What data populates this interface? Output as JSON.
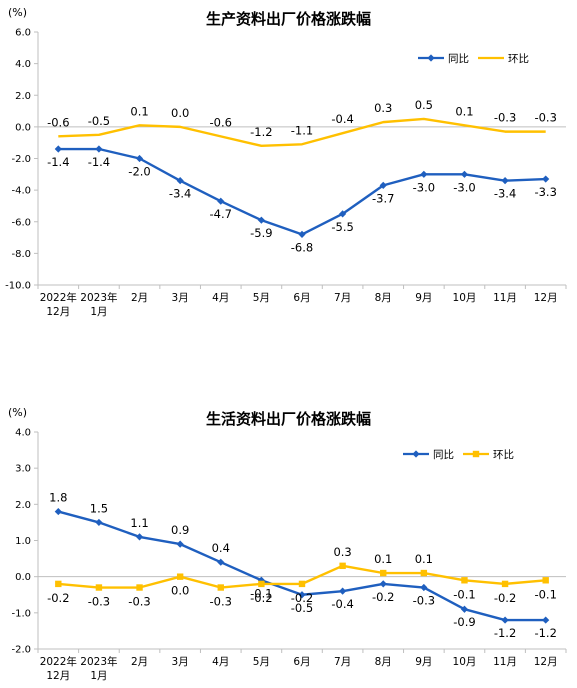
{
  "chart_data": [
    {
      "type": "line",
      "title": "生产资料出厂价格涨跌幅",
      "unit": "(%)",
      "categories": [
        [
          "2022年",
          "12月"
        ],
        [
          "2023年",
          "1月"
        ],
        [
          "2月"
        ],
        [
          "3月"
        ],
        [
          "4月"
        ],
        [
          "5月"
        ],
        [
          "6月"
        ],
        [
          "7月"
        ],
        [
          "8月"
        ],
        [
          "9月"
        ],
        [
          "10月"
        ],
        [
          "11月"
        ],
        [
          "12月"
        ]
      ],
      "ylim": [
        -10.0,
        6.0
      ],
      "yticks": [
        "6.0",
        "4.0",
        "2.0",
        "0.0",
        "-2.0",
        "-4.0",
        "-6.0",
        "-8.0",
        "-10.0"
      ],
      "legend_position": "top-right",
      "series": [
        {
          "name": "同比",
          "color": "#1f5fbf",
          "marker": "diamond",
          "values": [
            -1.4,
            -1.4,
            -2.0,
            -3.4,
            -4.7,
            -5.9,
            -6.8,
            -5.5,
            -3.7,
            -3.0,
            -3.0,
            -3.4,
            -3.3
          ],
          "labels": [
            "-1.4",
            "-1.4",
            "-2.0",
            "-3.4",
            "-4.7",
            "-5.9",
            "-6.8",
            "-5.5",
            "-3.7",
            "-3.0",
            "-3.0",
            "-3.4",
            "-3.3"
          ]
        },
        {
          "name": "环比",
          "color": "#ffc000",
          "marker": "none",
          "values": [
            -0.6,
            -0.5,
            0.1,
            0.0,
            -0.6,
            -1.2,
            -1.1,
            -0.4,
            0.3,
            0.5,
            0.1,
            -0.3,
            -0.3
          ],
          "labels": [
            "-0.6",
            "-0.5",
            "0.1",
            "0.0",
            "-0.6",
            "-1.2",
            "-1.1",
            "-0.4",
            "0.3",
            "0.5",
            "0.1",
            "-0.3",
            "-0.3"
          ]
        }
      ]
    },
    {
      "type": "line",
      "title": "生活资料出厂价格涨跌幅",
      "unit": "(%)",
      "categories": [
        [
          "2022年",
          "12月"
        ],
        [
          "2023年",
          "1月"
        ],
        [
          "2月"
        ],
        [
          "3月"
        ],
        [
          "4月"
        ],
        [
          "5月"
        ],
        [
          "6月"
        ],
        [
          "7月"
        ],
        [
          "8月"
        ],
        [
          "9月"
        ],
        [
          "10月"
        ],
        [
          "11月"
        ],
        [
          "12月"
        ]
      ],
      "ylim": [
        -2.0,
        4.0
      ],
      "yticks": [
        "4.0",
        "3.0",
        "2.0",
        "1.0",
        "0.0",
        "-1.0",
        "-2.0"
      ],
      "legend_position": "top-right",
      "series": [
        {
          "name": "同比",
          "color": "#1f5fbf",
          "marker": "diamond",
          "values": [
            1.8,
            1.5,
            1.1,
            0.9,
            0.4,
            -0.1,
            -0.5,
            -0.4,
            -0.2,
            -0.3,
            -0.9,
            -1.2,
            -1.2
          ],
          "labels": [
            "1.8",
            "1.5",
            "1.1",
            "0.9",
            "0.4",
            "-0.1",
            "-0.5",
            "-0.4",
            "-0.2",
            "-0.3",
            "-0.9",
            "-1.2",
            "-1.2"
          ]
        },
        {
          "name": "环比",
          "color": "#ffc000",
          "marker": "square",
          "values": [
            -0.2,
            -0.3,
            -0.3,
            0.0,
            -0.3,
            -0.2,
            -0.2,
            0.3,
            0.1,
            0.1,
            -0.1,
            -0.2,
            -0.1
          ],
          "labels": [
            "-0.2",
            "-0.3",
            "-0.3",
            "0.0",
            "-0.3",
            "-0.2",
            "-0.2",
            "0.3",
            "0.1",
            "0.1",
            "-0.1",
            "-0.2",
            "-0.1"
          ]
        }
      ]
    }
  ]
}
